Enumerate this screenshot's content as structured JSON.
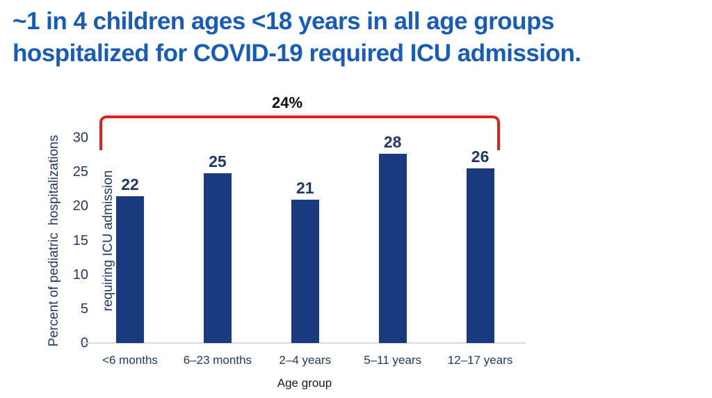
{
  "headline": {
    "line1": "~1 in 4 children ages <18 years in all age groups",
    "line2": "hospitalized for COVID-19 required ICU admission."
  },
  "colors": {
    "title_blue": "#165CB8",
    "navy": "#1F3864",
    "bar_navy": "#1A3A80",
    "bracket_red": "#E0201C",
    "axis_gray": "#D9D9D9",
    "black": "#0D0D0D"
  },
  "chart_data": {
    "type": "bar",
    "title": "~1 in 4 children ages <18 years in all age groups hospitalized for COVID-19 required ICU admission.",
    "categories": [
      "<6 months",
      "6–23 months",
      "2–4 years",
      "5–11 years",
      "12–17 years"
    ],
    "values": [
      22,
      25,
      21,
      28,
      26
    ],
    "plot_values": [
      21.5,
      24.8,
      20.9,
      27.7,
      25.5
    ],
    "xlabel": "Age group",
    "ylabel": "Percent of pediatric  hospitalizations requiring ICU admission",
    "ylabel_lines": [
      "Percent of pediatric  hospitalizations",
      "requiring ICU admission"
    ],
    "ylim": [
      0,
      30
    ],
    "yticks": [
      0,
      5,
      10,
      15,
      20,
      25,
      30
    ],
    "grid": false,
    "legend": false,
    "bar_color": "#1A3A80",
    "annotation": {
      "text": "24%",
      "shape": "red-bracket",
      "meaning": "overall percent across all age groups"
    }
  }
}
